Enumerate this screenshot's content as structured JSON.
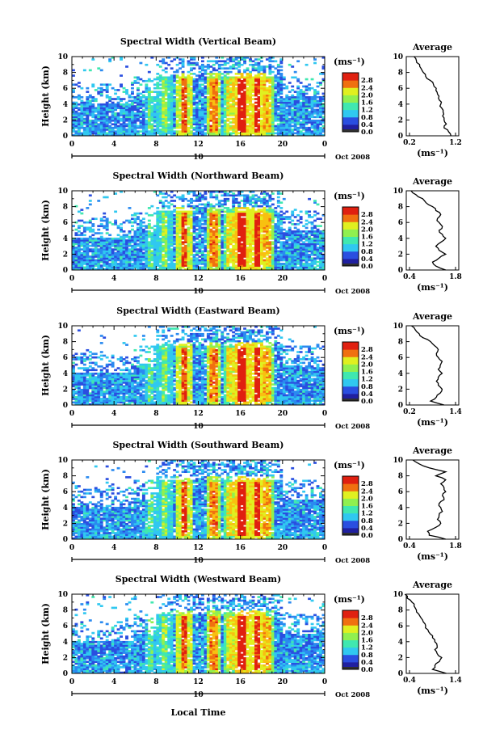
{
  "chart_data": [
    {
      "type": "heatmap",
      "title": "Spectral Width (Vertical Beam)",
      "ylabel": "Height (km)",
      "xticks": [
        "0",
        "4",
        "8",
        "12",
        "16",
        "20",
        "0"
      ],
      "yticks": [
        "0",
        "2",
        "4",
        "6",
        "8",
        "10"
      ],
      "date_day": "10",
      "date_month": "Oct 2008",
      "colorbar_unit": "(ms⁻¹)",
      "colorbar_ticks": [
        "0.0",
        "0.4",
        "0.8",
        "1.2",
        "1.6",
        "2.0",
        "2.4",
        "2.8"
      ],
      "profile": {
        "title": "Average",
        "xticks": [
          "0.2",
          "1.2"
        ],
        "xlabel": "(ms⁻¹)",
        "yticks": [
          "0",
          "2",
          "4",
          "6",
          "8",
          "10"
        ],
        "h": [
          0,
          0.5,
          1,
          1.5,
          2,
          2.5,
          3,
          3.5,
          4,
          4.5,
          5,
          5.5,
          6,
          6.5,
          7,
          7.5,
          8,
          8.5,
          9,
          9.5,
          10
        ],
        "v": [
          1.1,
          1.05,
          0.95,
          1.0,
          0.95,
          0.92,
          0.93,
          0.9,
          0.88,
          0.85,
          0.84,
          0.8,
          0.78,
          0.72,
          0.65,
          0.55,
          0.5,
          0.45,
          0.42,
          0.35,
          0.3
        ]
      }
    },
    {
      "type": "heatmap",
      "title": "Spectral Width (Northward Beam)",
      "ylabel": "Height (km)",
      "xticks": [
        "0",
        "4",
        "8",
        "12",
        "16",
        "20",
        "0"
      ],
      "yticks": [
        "0",
        "2",
        "4",
        "6",
        "8",
        "10"
      ],
      "date_day": "10",
      "date_month": "Oct 2008",
      "colorbar_unit": "(ms⁻¹)",
      "colorbar_ticks": [
        "0.0",
        "0.4",
        "0.8",
        "1.2",
        "1.6",
        "2.0",
        "2.4",
        "2.8"
      ],
      "profile": {
        "title": "Average",
        "xticks": [
          "0.4",
          "1.8"
        ],
        "xlabel": "(ms⁻¹)",
        "yticks": [
          "0",
          "2",
          "4",
          "6",
          "8",
          "10"
        ],
        "h": [
          0,
          0.5,
          1,
          1.5,
          2,
          2.5,
          3,
          3.5,
          4,
          4.5,
          5,
          5.5,
          6,
          6.5,
          7,
          7.5,
          8,
          8.5,
          9,
          9.5,
          10
        ],
        "v": [
          1.5,
          1.2,
          1.1,
          1.3,
          1.5,
          1.3,
          1.2,
          1.35,
          1.5,
          1.4,
          1.3,
          1.4,
          1.3,
          1.25,
          1.35,
          1.2,
          1.1,
          0.9,
          0.8,
          0.6,
          0.45
        ]
      }
    },
    {
      "type": "heatmap",
      "title": "Spectral Width (Eastward Beam)",
      "ylabel": "Height (km)",
      "xticks": [
        "0",
        "4",
        "8",
        "12",
        "16",
        "20",
        "0"
      ],
      "yticks": [
        "0",
        "2",
        "4",
        "6",
        "8",
        "10"
      ],
      "date_day": "10",
      "date_month": "Oct 2008",
      "colorbar_unit": "(ms⁻¹)",
      "colorbar_ticks": [
        "0.0",
        "0.4",
        "0.8",
        "1.2",
        "1.6",
        "2.0",
        "2.4",
        "2.8"
      ],
      "profile": {
        "title": "Average",
        "xticks": [
          "0.2",
          "1.4"
        ],
        "xlabel": "(ms⁻¹)",
        "yticks": [
          "0",
          "2",
          "4",
          "6",
          "8",
          "10"
        ],
        "h": [
          0,
          0.5,
          1,
          1.5,
          2,
          2.5,
          3,
          3.5,
          4,
          4.5,
          5,
          5.5,
          6,
          6.5,
          7,
          7.5,
          8,
          8.5,
          9,
          9.5,
          10
        ],
        "v": [
          1.1,
          0.75,
          0.9,
          1.0,
          1.05,
          0.95,
          0.9,
          0.95,
          1.05,
          0.95,
          1.0,
          1.05,
          0.95,
          0.9,
          0.95,
          0.85,
          0.75,
          0.55,
          0.45,
          0.35,
          0.25
        ]
      }
    },
    {
      "type": "heatmap",
      "title": "Spectral Width (Southward Beam)",
      "ylabel": "Height (km)",
      "xticks": [
        "0",
        "4",
        "8",
        "12",
        "16",
        "20",
        "0"
      ],
      "yticks": [
        "0",
        "2",
        "4",
        "6",
        "8",
        "10"
      ],
      "date_day": "10",
      "date_month": "Oct 2008",
      "colorbar_unit": "(ms⁻¹)",
      "colorbar_ticks": [
        "0.0",
        "0.4",
        "0.8",
        "1.2",
        "1.6",
        "2.0",
        "2.4",
        "2.8"
      ],
      "profile": {
        "title": "Average",
        "xticks": [
          "0.4",
          "1.8"
        ],
        "xlabel": "(ms⁻¹)",
        "yticks": [
          "0",
          "2",
          "4",
          "6",
          "8",
          "10"
        ],
        "h": [
          0,
          0.5,
          1,
          1.5,
          2,
          2.5,
          3,
          3.5,
          4,
          4.5,
          5,
          5.5,
          6,
          6.5,
          7,
          7.5,
          8,
          8.5,
          9,
          9.5,
          10
        ],
        "v": [
          1.5,
          1.0,
          0.95,
          1.2,
          1.35,
          1.25,
          1.3,
          1.4,
          1.35,
          1.3,
          1.45,
          1.4,
          1.5,
          1.45,
          1.35,
          1.5,
          1.2,
          1.5,
          1.0,
          0.7,
          0.5
        ]
      }
    },
    {
      "type": "heatmap",
      "title": "Spectral Width (Westward Beam)",
      "ylabel": "Height (km)",
      "xticks": [
        "0",
        "4",
        "8",
        "12",
        "16",
        "20",
        "0"
      ],
      "yticks": [
        "0",
        "2",
        "4",
        "6",
        "8",
        "10"
      ],
      "date_day": "10",
      "date_month": "Oct 2008",
      "colorbar_unit": "(ms⁻¹)",
      "colorbar_ticks": [
        "0.0",
        "0.4",
        "0.8",
        "1.2",
        "1.6",
        "2.0",
        "2.4",
        "2.8"
      ],
      "xlabel": "Local Time",
      "profile": {
        "title": "Average",
        "xticks": [
          "0.4",
          "1.4"
        ],
        "xlabel": "(ms⁻¹)",
        "yticks": [
          "0",
          "2",
          "4",
          "6",
          "8",
          "10"
        ],
        "h": [
          0,
          0.5,
          1,
          1.5,
          2,
          2.5,
          3,
          3.5,
          4,
          4.5,
          5,
          5.5,
          6,
          6.5,
          7,
          7.5,
          8,
          8.5,
          9,
          9.5,
          10
        ],
        "v": [
          1.2,
          0.9,
          0.95,
          1.05,
          1.1,
          1.0,
          0.95,
          1.0,
          0.95,
          0.9,
          0.85,
          0.8,
          0.75,
          0.7,
          0.65,
          0.6,
          0.55,
          0.5,
          0.45,
          0.35,
          0.3
        ]
      }
    }
  ]
}
